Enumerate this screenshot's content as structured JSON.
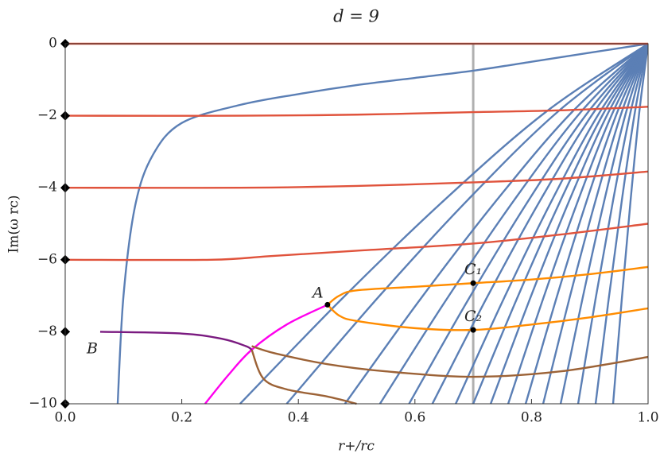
{
  "chart_data": {
    "type": "line",
    "title": "d = 9",
    "x_label": "r+/rc",
    "y_label": "Im(ω rc)",
    "xlim": [
      0,
      1
    ],
    "ylim": [
      -10,
      0
    ],
    "xticks": [
      {
        "value": 0,
        "label": "0.0"
      },
      0.2,
      0.4,
      0.6,
      0.8,
      {
        "value": 1,
        "label": "1.0"
      }
    ],
    "yticks": [
      {
        "value": 0,
        "label": "0"
      },
      {
        "value": -2,
        "label": "−2"
      },
      {
        "value": -4,
        "label": "−4"
      },
      {
        "value": -6,
        "label": "−6"
      },
      {
        "value": -8,
        "label": "−8"
      },
      {
        "value": -10,
        "label": "−10"
      }
    ],
    "grid": false,
    "vline": {
      "x": 0.7,
      "color": "#b0b0b0"
    },
    "series": [
      {
        "color": "#5b7fb5",
        "x": [
          0.09,
          0.1,
          0.12,
          0.15,
          0.2,
          0.3,
          0.4,
          0.5,
          0.6,
          0.7,
          0.8,
          0.9,
          1
        ],
        "values": [
          -10,
          -7,
          -4.5,
          -3.1,
          -2.2,
          -1.7,
          -1.4,
          -1.15,
          -0.95,
          -0.75,
          -0.5,
          -0.25,
          0
        ]
      },
      {
        "color": "#5b7fb5",
        "x": [
          0.3,
          0.475,
          0.65,
          0.825,
          1
        ],
        "values": [
          -10,
          -7.08,
          -4.35,
          -1.89,
          0
        ]
      },
      {
        "color": "#5b7fb5",
        "x": [
          0.38,
          0.535,
          0.69,
          0.845,
          1
        ],
        "values": [
          -10,
          -7.08,
          -4.35,
          -1.89,
          0
        ]
      },
      {
        "color": "#5b7fb5",
        "x": [
          0.48,
          0.61,
          0.74,
          0.87,
          1
        ],
        "values": [
          -10,
          -7.08,
          -4.35,
          -1.89,
          0
        ]
      },
      {
        "color": "#5b7fb5",
        "x": [
          0.54,
          0.655,
          0.77,
          0.885,
          1
        ],
        "values": [
          -10,
          -7.08,
          -4.35,
          -1.89,
          0
        ]
      },
      {
        "color": "#5b7fb5",
        "x": [
          0.59,
          0.6925,
          0.795,
          0.8975,
          1
        ],
        "values": [
          -10,
          -7.08,
          -4.35,
          -1.89,
          0
        ]
      },
      {
        "color": "#5b7fb5",
        "x": [
          0.63,
          0.7225,
          0.815,
          0.9075,
          1
        ],
        "values": [
          -10,
          -7.08,
          -4.35,
          -1.89,
          0
        ]
      },
      {
        "color": "#5b7fb5",
        "x": [
          0.67,
          0.7525,
          0.835,
          0.9175,
          1
        ],
        "values": [
          -10,
          -7.08,
          -4.35,
          -1.89,
          0
        ]
      },
      {
        "color": "#5b7fb5",
        "x": [
          0.7,
          0.775,
          0.85,
          0.925,
          1
        ],
        "values": [
          -10,
          -7.08,
          -4.35,
          -1.89,
          0
        ]
      },
      {
        "color": "#5b7fb5",
        "x": [
          0.73,
          0.7975,
          0.865,
          0.9325,
          1
        ],
        "values": [
          -10,
          -7.08,
          -4.35,
          -1.89,
          0
        ]
      },
      {
        "color": "#5b7fb5",
        "x": [
          0.76,
          0.82,
          0.88,
          0.94,
          1
        ],
        "values": [
          -10,
          -7.08,
          -4.35,
          -1.89,
          0
        ]
      },
      {
        "color": "#5b7fb5",
        "x": [
          0.79,
          0.8425,
          0.895,
          0.9475,
          1
        ],
        "values": [
          -10,
          -7.08,
          -4.35,
          -1.89,
          0
        ]
      },
      {
        "color": "#5b7fb5",
        "x": [
          0.82,
          0.865,
          0.91,
          0.955,
          1
        ],
        "values": [
          -10,
          -7.08,
          -4.35,
          -1.89,
          0
        ]
      },
      {
        "color": "#5b7fb5",
        "x": [
          0.85,
          0.8875,
          0.925,
          0.9625,
          1
        ],
        "values": [
          -10,
          -7.08,
          -4.35,
          -1.89,
          0
        ]
      },
      {
        "color": "#5b7fb5",
        "x": [
          0.88,
          0.91,
          0.94,
          0.97,
          1
        ],
        "values": [
          -10,
          -7.08,
          -4.35,
          -1.89,
          0
        ]
      },
      {
        "color": "#5b7fb5",
        "x": [
          0.91,
          0.9325,
          0.955,
          0.9775,
          1
        ],
        "values": [
          -10,
          -7.08,
          -4.35,
          -1.89,
          0
        ]
      },
      {
        "color": "#5b7fb5",
        "x": [
          0.94,
          0.955,
          0.97,
          0.985,
          1
        ],
        "values": [
          -10,
          -7.08,
          -4.35,
          -1.89,
          0
        ]
      },
      {
        "color": "#e0533c",
        "x": [
          0,
          1
        ],
        "values": [
          0,
          0
        ]
      },
      {
        "color": "#e0533c",
        "x": [
          0,
          0.3,
          0.5,
          0.7,
          0.85,
          1
        ],
        "values": [
          -2,
          -2,
          -1.97,
          -1.9,
          -1.85,
          -1.75
        ]
      },
      {
        "color": "#e0533c",
        "x": [
          0,
          0.3,
          0.5,
          0.7,
          0.85,
          1
        ],
        "values": [
          -4,
          -4,
          -3.95,
          -3.85,
          -3.75,
          -3.55
        ]
      },
      {
        "color": "#e0533c",
        "x": [
          0,
          0.25,
          0.35,
          0.5,
          0.7,
          0.85,
          1
        ],
        "values": [
          -6,
          -6,
          -5.9,
          -5.75,
          -5.55,
          -5.3,
          -5
        ]
      },
      {
        "color": "#ff8c00",
        "x": [
          0.45,
          0.47,
          0.5,
          0.6,
          0.7,
          0.8,
          0.9,
          1
        ],
        "values": [
          -7.25,
          -7,
          -6.85,
          -6.75,
          -6.65,
          -6.55,
          -6.4,
          -6.2
        ]
      },
      {
        "color": "#ff8c00",
        "x": [
          0.45,
          0.47,
          0.5,
          0.6,
          0.7,
          0.8,
          0.9,
          1
        ],
        "values": [
          -7.25,
          -7.55,
          -7.7,
          -7.9,
          -7.95,
          -7.8,
          -7.6,
          -7.35
        ]
      },
      {
        "color": "#ff00ee",
        "x": [
          0.24,
          0.28,
          0.32,
          0.38,
          0.45
        ],
        "values": [
          -10,
          -9.2,
          -8.5,
          -7.8,
          -7.25
        ]
      },
      {
        "color": "#7a1a80",
        "x": [
          0.06,
          0.2,
          0.27,
          0.31,
          0.32
        ],
        "values": [
          -8,
          -8.05,
          -8.2,
          -8.4,
          -8.5
        ]
      },
      {
        "color": "#9c6236",
        "x": [
          0.32,
          0.36,
          0.45,
          0.55,
          0.7,
          0.85,
          1
        ],
        "values": [
          -8.4,
          -8.6,
          -8.9,
          -9.1,
          -9.25,
          -9.1,
          -8.7
        ]
      },
      {
        "color": "#9c6236",
        "x": [
          0.32,
          0.34,
          0.38,
          0.45,
          0.5
        ],
        "values": [
          -8.5,
          -9.3,
          -9.6,
          -9.8,
          -10
        ]
      }
    ],
    "markers": {
      "color": "#000000",
      "x": [
        0,
        0,
        0,
        0,
        0,
        0
      ],
      "values": [
        0,
        -2,
        -4,
        -6,
        -8,
        -10
      ]
    },
    "annotations": [
      {
        "text": "A",
        "x": 0.45,
        "y": -7.25
      },
      {
        "text": "B",
        "x": 0.06,
        "y": -8
      },
      {
        "text": "C₁",
        "x": 0.7,
        "y": -6.65
      },
      {
        "text": "C₂",
        "x": 0.7,
        "y": -7.95
      }
    ]
  }
}
